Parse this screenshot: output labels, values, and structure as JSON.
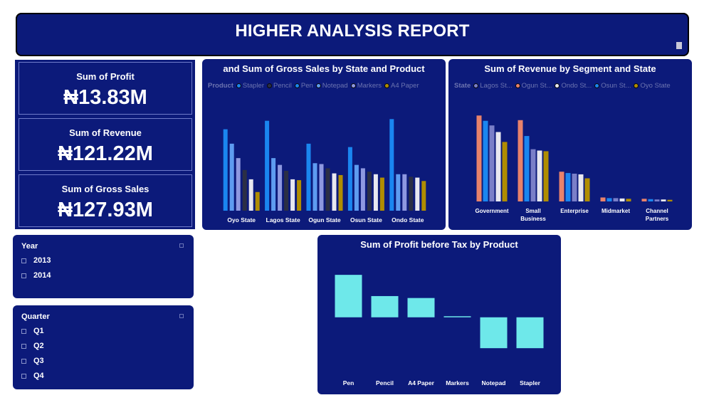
{
  "header": {
    "title": "HIGHER ANALYSIS REPORT"
  },
  "kpis": [
    {
      "label": "Sum of Profit",
      "value": "₦13.83M"
    },
    {
      "label": "Sum of Revenue",
      "value": "₦121.22M"
    },
    {
      "label": "Sum of Gross Sales",
      "value": "₦127.93M"
    }
  ],
  "year_slicer": {
    "title": "Year",
    "items": [
      "2013",
      "2014"
    ]
  },
  "quarter_slicer": {
    "title": "Quarter",
    "items": [
      "Q1",
      "Q2",
      "Q3",
      "Q4"
    ]
  },
  "colors": {
    "background": "#0c1a7a",
    "Stapler": "#1a86f0",
    "Pencil": "#8e98e0",
    "Pen": "#ececf4",
    "Notepad": "#2b2f45",
    "Markers": "#e8e8f0",
    "A4 Paper": "#b08d00",
    "profit_bar": "#6ee8ea"
  },
  "chart_data": [
    {
      "type": "bar",
      "title": "and Sum of Gross Sales by State and Product",
      "legend_title": "Product",
      "legend_position": "top-left",
      "categories": [
        "Oyo State",
        "Lagos State",
        "Ogun State",
        "Osun State",
        "Ondo State"
      ],
      "series": [
        {
          "name": "Stapler",
          "color": "#1a86f0",
          "values": [
            9.6,
            10.6,
            7.9,
            7.5,
            10.8
          ]
        },
        {
          "name": "Pencil",
          "color": "#5e9cf0",
          "values": [
            7.9,
            6.2,
            5.6,
            5.4,
            4.3
          ]
        },
        {
          "name": "Pen",
          "color": "#8e98e0",
          "values": [
            6.2,
            5.4,
            5.5,
            5.0,
            4.3
          ]
        },
        {
          "name": "Notepad",
          "color": "#2b2f45",
          "values": [
            4.8,
            4.7,
            5.0,
            4.6,
            4.0
          ]
        },
        {
          "name": "Markers",
          "color": "#e8e8f0",
          "values": [
            3.7,
            3.7,
            4.4,
            4.3,
            3.9
          ]
        },
        {
          "name": "A4 Paper",
          "color": "#b08d00",
          "values": [
            2.2,
            3.6,
            4.2,
            3.9,
            3.5
          ]
        }
      ],
      "legend": [
        "Stapler",
        "Pencil",
        "Pen",
        "Notepad",
        "Markers",
        "A4 Paper"
      ],
      "ylim": [
        0,
        12
      ]
    },
    {
      "type": "bar",
      "title": "Sum of Revenue by Segment and State",
      "legend_title": "State",
      "legend_position": "top-left",
      "categories": [
        "Government",
        "Small Business",
        "Enterprise",
        "Midmarket",
        "Channel Partners"
      ],
      "series": [
        {
          "name": "Lagos St...",
          "color": "#e8826b",
          "values": [
            13.0,
            12.3,
            4.5,
            0.6,
            0.4
          ]
        },
        {
          "name": "Ogun St...",
          "color": "#1a86f0",
          "values": [
            12.2,
            9.9,
            4.3,
            0.5,
            0.35
          ]
        },
        {
          "name": "Ondo St...",
          "color": "#7a7fc8",
          "values": [
            11.5,
            7.9,
            4.2,
            0.5,
            0.3
          ]
        },
        {
          "name": "Osun St...",
          "color": "#e8e8f0",
          "values": [
            10.5,
            7.7,
            4.1,
            0.45,
            0.3
          ]
        },
        {
          "name": "Oyo State",
          "color": "#b08d00",
          "values": [
            9.0,
            7.6,
            3.5,
            0.4,
            0.25
          ]
        }
      ],
      "ylim": [
        0,
        14
      ]
    },
    {
      "type": "bar",
      "title": "Sum of Profit before Tax by Product",
      "categories": [
        "Pen",
        "Pencil",
        "A4 Paper",
        "Markers",
        "Notepad",
        "Stapler"
      ],
      "values": [
        2.2,
        1.1,
        1.0,
        0.05,
        -1.6,
        -1.6
      ],
      "ylim": [
        -2,
        2.5
      ]
    }
  ]
}
